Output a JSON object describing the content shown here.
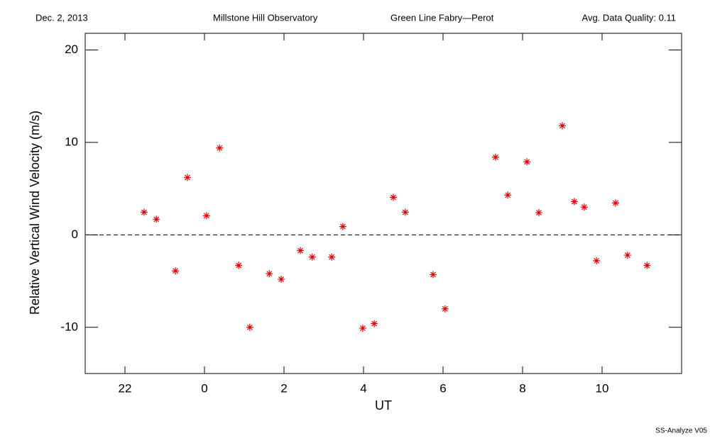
{
  "header": {
    "date": "Dec. 2, 2013",
    "observatory": "Millstone Hill Observatory",
    "instrument": "Green Line Fabry—Perot",
    "quality": "Avg. Data Quality: 0.11"
  },
  "footer": "SS-Analyze V05",
  "chart_data": {
    "type": "scatter",
    "x_label": "UT",
    "y_label": "Relative Vertical Wind Velocity (m/s)",
    "xlim": [
      -3,
      12
    ],
    "ylim": [
      -15,
      21.8
    ],
    "xticks": [
      {
        "value": -2,
        "label": "22"
      },
      0,
      2,
      4,
      6,
      8,
      10
    ],
    "yticks": [
      -10,
      0,
      10,
      20
    ],
    "reference_line": 0,
    "series": [
      {
        "color": "#e00000",
        "x": [
          -1.52,
          -1.21,
          -0.73,
          -0.43,
          0.05,
          0.38,
          0.86,
          1.14,
          1.63,
          1.93,
          2.41,
          2.71,
          3.2,
          3.48,
          3.98,
          4.27,
          4.75,
          5.05,
          5.75,
          6.05,
          7.32,
          7.63,
          8.11,
          8.41,
          9.0,
          9.3,
          9.55,
          9.86,
          10.34,
          10.64,
          11.13
        ],
        "values": [
          2.45,
          1.69,
          -3.9,
          6.2,
          2.07,
          9.4,
          -3.3,
          -10.0,
          -4.2,
          -4.8,
          -1.7,
          -2.4,
          -2.4,
          0.9,
          -10.1,
          -9.6,
          4.06,
          2.45,
          -4.3,
          -8.0,
          8.4,
          4.3,
          7.9,
          2.4,
          11.8,
          3.6,
          3.0,
          -2.8,
          3.45,
          -2.2,
          -3.3
        ]
      }
    ]
  }
}
